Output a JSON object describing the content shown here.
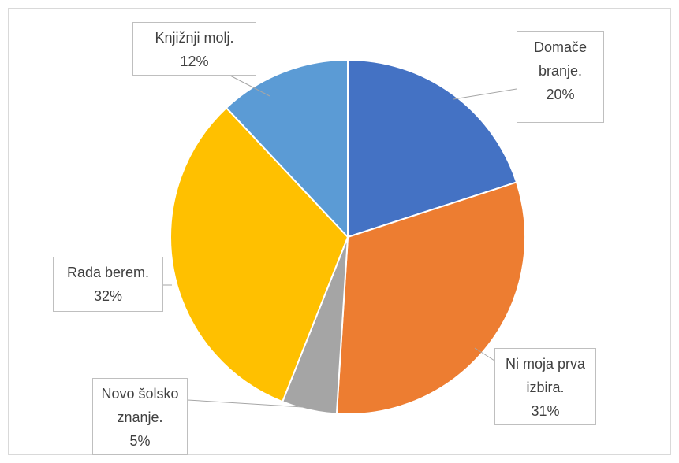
{
  "chart_data": {
    "type": "pie",
    "categories": [
      "Domače branje.",
      "Ni moja prva izbira.",
      "Novo šolsko znanje.",
      "Rada berem.",
      "Knjižnji molj."
    ],
    "values": [
      20,
      31,
      5,
      32,
      12
    ],
    "value_labels": [
      "20%",
      "31%",
      "5%",
      "32%",
      "12%"
    ],
    "colors": [
      "#4472c4",
      "#ed7d31",
      "#a5a5a5",
      "#ffc000",
      "#5b9bd5"
    ]
  }
}
